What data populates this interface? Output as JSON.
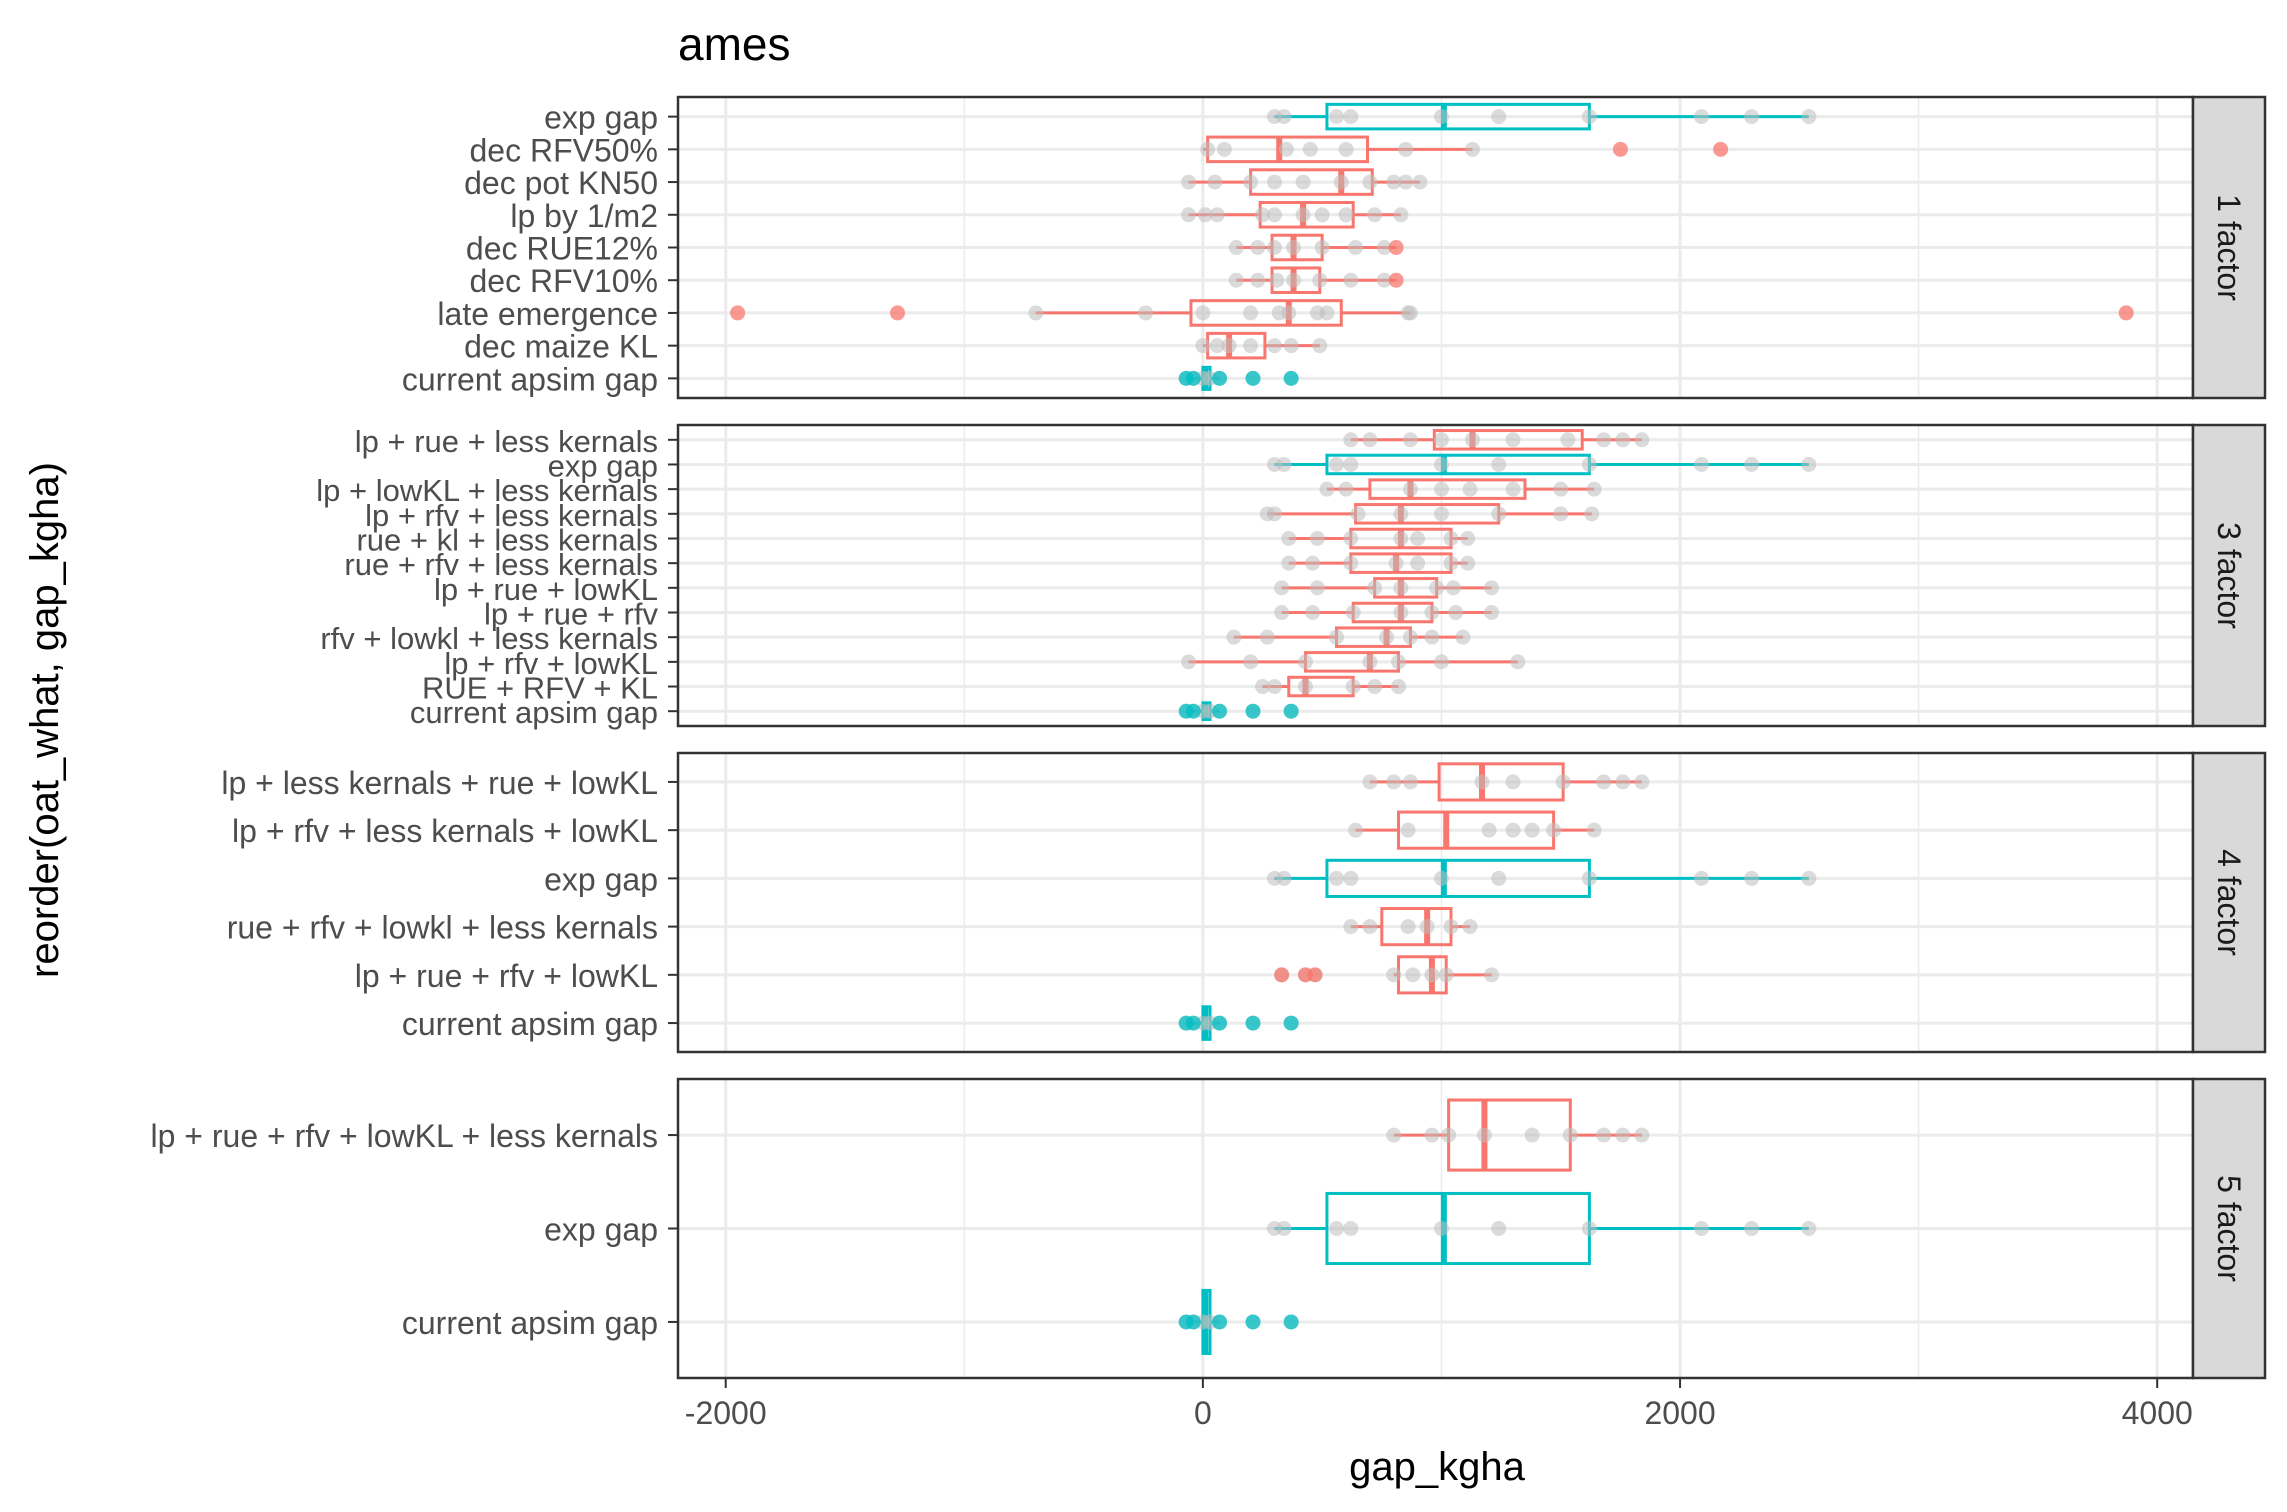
{
  "chart_data": {
    "type": "boxplot",
    "title": "ames",
    "xlabel": "gap_kgha",
    "ylabel": "reorder(oat_what, gap_kgha)",
    "xlim": [
      -2200,
      4150
    ],
    "xticks": [
      -2000,
      0,
      2000,
      4000
    ],
    "xtick_labels": [
      "-2000",
      "0",
      "2000",
      "4000"
    ],
    "grid": true,
    "colors": {
      "scenario": "#F8766D",
      "reference": "#00BFC4",
      "points": "#BEBEBE",
      "strip_fill": "#D9D9D9",
      "panel_border": "#333333",
      "grid": "#EBEBEB"
    },
    "panels": [
      {
        "strip": "1 factor",
        "rows": [
          {
            "label": "exp gap",
            "group": "reference",
            "q1": 520,
            "median": 1010,
            "q3": 1620,
            "whisker_low": 300,
            "whisker_high": 2540,
            "outliers": [],
            "points": [
              300,
              340,
              560,
              620,
              1000,
              1240,
              1620,
              2090,
              2300,
              2540
            ]
          },
          {
            "label": "dec RFV50%",
            "group": "scenario",
            "q1": 20,
            "median": 320,
            "q3": 690,
            "whisker_low": 0,
            "whisker_high": 1130,
            "outliers": [
              1750,
              2170
            ],
            "points": [
              20,
              90,
              350,
              450,
              600,
              850,
              1130
            ]
          },
          {
            "label": "dec pot KN50",
            "group": "scenario",
            "q1": 200,
            "median": 580,
            "q3": 710,
            "whisker_low": -60,
            "whisker_high": 910,
            "outliers": [],
            "points": [
              -60,
              50,
              200,
              300,
              420,
              580,
              700,
              800,
              850,
              910
            ]
          },
          {
            "label": "lp by 1/m2",
            "group": "scenario",
            "q1": 240,
            "median": 420,
            "q3": 630,
            "whisker_low": -60,
            "whisker_high": 830,
            "outliers": [],
            "points": [
              -60,
              10,
              60,
              250,
              300,
              420,
              500,
              600,
              720,
              830
            ]
          },
          {
            "label": "dec RUE12%",
            "group": "scenario",
            "q1": 290,
            "median": 380,
            "q3": 500,
            "whisker_low": 140,
            "whisker_high": 810,
            "outliers": [
              810
            ],
            "points": [
              140,
              230,
              300,
              380,
              500,
              640,
              760
            ]
          },
          {
            "label": "dec RFV10%",
            "group": "scenario",
            "q1": 290,
            "median": 380,
            "q3": 490,
            "whisker_low": 140,
            "whisker_high": 810,
            "outliers": [
              810
            ],
            "points": [
              140,
              230,
              310,
              380,
              490,
              620,
              760
            ]
          },
          {
            "label": "late emergence",
            "group": "scenario",
            "q1": -50,
            "median": 360,
            "q3": 580,
            "whisker_low": -700,
            "whisker_high": 870,
            "outliers": [
              -1950,
              -1280,
              3870
            ],
            "points": [
              -700,
              -240,
              0,
              200,
              320,
              360,
              480,
              520,
              860,
              870
            ]
          },
          {
            "label": "dec maize KL",
            "group": "scenario",
            "q1": 20,
            "median": 110,
            "q3": 260,
            "whisker_low": 0,
            "whisker_high": 490,
            "outliers": [],
            "points": [
              0,
              60,
              110,
              200,
              300,
              370,
              490
            ]
          },
          {
            "label": "current apsim gap",
            "group": "reference",
            "q1": 0,
            "median": 10,
            "q3": 30,
            "whisker_low": -60,
            "whisker_high": 70,
            "outliers": [
              -70,
              -40,
              70,
              210,
              370
            ],
            "points": [
              -70,
              -40,
              0,
              30,
              70,
              210,
              370
            ]
          }
        ]
      },
      {
        "strip": "3 factor",
        "rows": [
          {
            "label": "lp + rue + less kernals",
            "group": "scenario",
            "q1": 970,
            "median": 1130,
            "q3": 1590,
            "whisker_low": 620,
            "whisker_high": 1840,
            "outliers": [],
            "points": [
              620,
              700,
              870,
              1000,
              1130,
              1300,
              1530,
              1680,
              1760,
              1840
            ]
          },
          {
            "label": "exp gap",
            "group": "reference",
            "q1": 520,
            "median": 1010,
            "q3": 1620,
            "whisker_low": 300,
            "whisker_high": 2540,
            "outliers": [],
            "points": [
              300,
              340,
              560,
              620,
              1000,
              1240,
              1620,
              2090,
              2300,
              2540
            ]
          },
          {
            "label": "lp + lowKL + less kernals",
            "group": "scenario",
            "q1": 700,
            "median": 870,
            "q3": 1350,
            "whisker_low": 520,
            "whisker_high": 1640,
            "outliers": [],
            "points": [
              520,
              600,
              870,
              1000,
              1120,
              1300,
              1500,
              1640
            ]
          },
          {
            "label": "lp + rfv + less kernals",
            "group": "scenario",
            "q1": 640,
            "median": 830,
            "q3": 1240,
            "whisker_low": 270,
            "whisker_high": 1630,
            "outliers": [],
            "points": [
              270,
              300,
              650,
              830,
              1000,
              1240,
              1500,
              1630
            ]
          },
          {
            "label": "rue + kl + less kernals",
            "group": "scenario",
            "q1": 620,
            "median": 830,
            "q3": 1040,
            "whisker_low": 360,
            "whisker_high": 1110,
            "outliers": [],
            "points": [
              360,
              480,
              620,
              830,
              900,
              1040,
              1110
            ]
          },
          {
            "label": "rue + rfv + less kernals",
            "group": "scenario",
            "q1": 620,
            "median": 810,
            "q3": 1040,
            "whisker_low": 360,
            "whisker_high": 1110,
            "outliers": [],
            "points": [
              360,
              460,
              620,
              810,
              900,
              1040,
              1110
            ]
          },
          {
            "label": "lp + rue + lowKL",
            "group": "scenario",
            "q1": 720,
            "median": 830,
            "q3": 980,
            "whisker_low": 330,
            "whisker_high": 1210,
            "outliers": [],
            "points": [
              330,
              480,
              720,
              830,
              980,
              1050,
              1210
            ]
          },
          {
            "label": "lp + rue + rfv",
            "group": "scenario",
            "q1": 630,
            "median": 830,
            "q3": 960,
            "whisker_low": 330,
            "whisker_high": 1210,
            "outliers": [],
            "points": [
              330,
              460,
              630,
              830,
              960,
              1060,
              1210
            ]
          },
          {
            "label": "rfv + lowkl + less kernals",
            "group": "scenario",
            "q1": 560,
            "median": 770,
            "q3": 870,
            "whisker_low": 130,
            "whisker_high": 1090,
            "outliers": [],
            "points": [
              130,
              270,
              560,
              770,
              870,
              960,
              1090
            ]
          },
          {
            "label": "lp + rfv + lowKL",
            "group": "scenario",
            "q1": 430,
            "median": 700,
            "q3": 820,
            "whisker_low": -60,
            "whisker_high": 1320,
            "outliers": [],
            "points": [
              -60,
              200,
              430,
              700,
              820,
              1000,
              1320
            ]
          },
          {
            "label": "RUE + RFV + KL",
            "group": "scenario",
            "q1": 360,
            "median": 430,
            "q3": 630,
            "whisker_low": 250,
            "whisker_high": 820,
            "outliers": [],
            "points": [
              250,
              300,
              430,
              630,
              720,
              820
            ]
          },
          {
            "label": "current apsim gap",
            "group": "reference",
            "q1": 0,
            "median": 10,
            "q3": 30,
            "whisker_low": -60,
            "whisker_high": 70,
            "outliers": [
              -70,
              -40,
              70,
              210,
              370
            ],
            "points": [
              -70,
              -40,
              0,
              30,
              70,
              210,
              370
            ]
          }
        ]
      },
      {
        "strip": "4 factor",
        "rows": [
          {
            "label": "lp  + less kernals + rue + lowKL",
            "group": "scenario",
            "q1": 990,
            "median": 1170,
            "q3": 1510,
            "whisker_low": 700,
            "whisker_high": 1840,
            "outliers": [],
            "points": [
              700,
              800,
              870,
              1170,
              1300,
              1510,
              1680,
              1760,
              1840
            ]
          },
          {
            "label": "lp + rfv + less kernals + lowKL",
            "group": "scenario",
            "q1": 820,
            "median": 1020,
            "q3": 1470,
            "whisker_low": 640,
            "whisker_high": 1640,
            "outliers": [],
            "points": [
              640,
              860,
              1200,
              1300,
              1380,
              1470,
              1640
            ]
          },
          {
            "label": "exp gap",
            "group": "reference",
            "q1": 520,
            "median": 1010,
            "q3": 1620,
            "whisker_low": 300,
            "whisker_high": 2540,
            "outliers": [],
            "points": [
              300,
              340,
              560,
              620,
              1000,
              1240,
              1620,
              2090,
              2300,
              2540
            ]
          },
          {
            "label": "rue + rfv + lowkl + less kernals",
            "group": "scenario",
            "q1": 750,
            "median": 940,
            "q3": 1040,
            "whisker_low": 620,
            "whisker_high": 1120,
            "outliers": [],
            "points": [
              620,
              700,
              860,
              940,
              1040,
              1120
            ]
          },
          {
            "label": "lp + rue + rfv + lowKL",
            "group": "scenario",
            "q1": 820,
            "median": 960,
            "q3": 1020,
            "whisker_low": 800,
            "whisker_high": 1210,
            "outliers": [
              330,
              430,
              470
            ],
            "points": [
              330,
              430,
              470,
              800,
              880,
              960,
              1020,
              1210
            ]
          },
          {
            "label": "current apsim gap",
            "group": "reference",
            "q1": 0,
            "median": 10,
            "q3": 30,
            "whisker_low": -60,
            "whisker_high": 70,
            "outliers": [
              -70,
              -40,
              70,
              210,
              370
            ],
            "points": [
              -70,
              -40,
              0,
              30,
              70,
              210,
              370
            ]
          }
        ]
      },
      {
        "strip": "5 factor",
        "rows": [
          {
            "label": "lp + rue + rfv + lowKL + less kernals",
            "group": "scenario",
            "q1": 1030,
            "median": 1180,
            "q3": 1540,
            "whisker_low": 800,
            "whisker_high": 1840,
            "outliers": [],
            "points": [
              800,
              960,
              1030,
              1180,
              1380,
              1540,
              1680,
              1760,
              1840
            ]
          },
          {
            "label": "exp gap",
            "group": "reference",
            "q1": 520,
            "median": 1010,
            "q3": 1620,
            "whisker_low": 300,
            "whisker_high": 2540,
            "outliers": [],
            "points": [
              300,
              340,
              560,
              620,
              1000,
              1240,
              1620,
              2090,
              2300,
              2540
            ]
          },
          {
            "label": "current apsim gap",
            "group": "reference",
            "q1": 0,
            "median": 10,
            "q3": 30,
            "whisker_low": -60,
            "whisker_high": 70,
            "outliers": [
              -70,
              -40,
              70,
              210,
              370
            ],
            "points": [
              -70,
              -40,
              0,
              30,
              70,
              210,
              370
            ]
          }
        ]
      }
    ]
  }
}
